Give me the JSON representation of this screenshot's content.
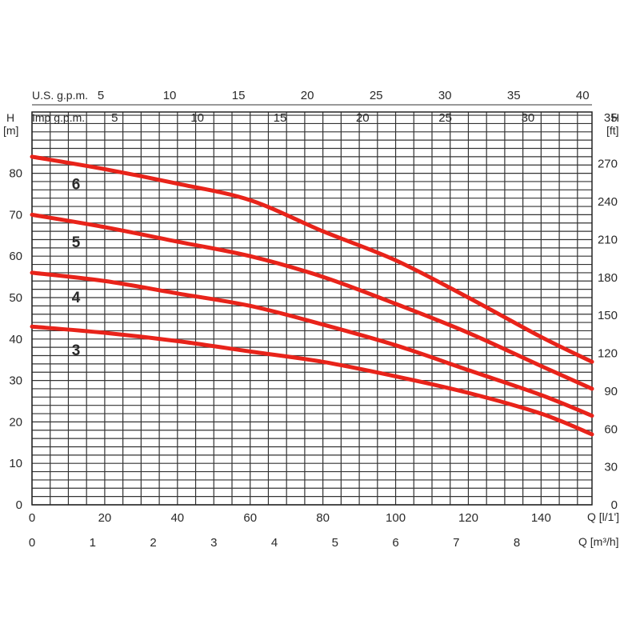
{
  "chart_data": {
    "type": "line",
    "title": "",
    "x": [
      0,
      20,
      40,
      60,
      80,
      100,
      120,
      140,
      154
    ],
    "series": [
      {
        "name": "6",
        "values": [
          84,
          81,
          77.5,
          73.5,
          66,
          59,
          50,
          40.5,
          34.5
        ]
      },
      {
        "name": "5",
        "values": [
          70,
          67,
          63.5,
          60,
          55,
          48.5,
          41.5,
          33.5,
          28
        ]
      },
      {
        "name": "4",
        "values": [
          56,
          54,
          51,
          48,
          43.5,
          38.5,
          32.5,
          26.5,
          21.5
        ]
      },
      {
        "name": "3",
        "values": [
          43,
          41.5,
          39.5,
          37,
          34.5,
          31,
          27,
          22,
          17
        ]
      }
    ],
    "xlim": [
      0,
      154
    ],
    "ylim": [
      0,
      84
    ],
    "grid": true,
    "color": "#e8231a",
    "axes": {
      "bottom_primary": {
        "label": "Q [l/1']",
        "ticks": [
          "0",
          "20",
          "40",
          "60",
          "80",
          "100",
          "120",
          "140"
        ]
      },
      "bottom_secondary": {
        "label": "Q [m³/h]",
        "ticks": [
          "0",
          "1",
          "2",
          "3",
          "4",
          "5",
          "6",
          "7",
          "8"
        ]
      },
      "top_us": {
        "label": "U.S. g.p.m.",
        "ticks": [
          "5",
          "10",
          "15",
          "20",
          "25",
          "30",
          "35",
          "40"
        ]
      },
      "top_imp": {
        "label": "Imp g.p.m.",
        "ticks": [
          "5",
          "10",
          "15",
          "20",
          "25",
          "30",
          "35"
        ]
      },
      "left": {
        "title": "H",
        "unit": "[m]",
        "ticks": [
          "0",
          "10",
          "20",
          "30",
          "40",
          "50",
          "60",
          "70",
          "80"
        ]
      },
      "right": {
        "title": "H",
        "unit": "[ft]",
        "ticks": [
          "0",
          "30",
          "60",
          "90",
          "120",
          "150",
          "180",
          "210",
          "240",
          "270"
        ]
      }
    }
  }
}
